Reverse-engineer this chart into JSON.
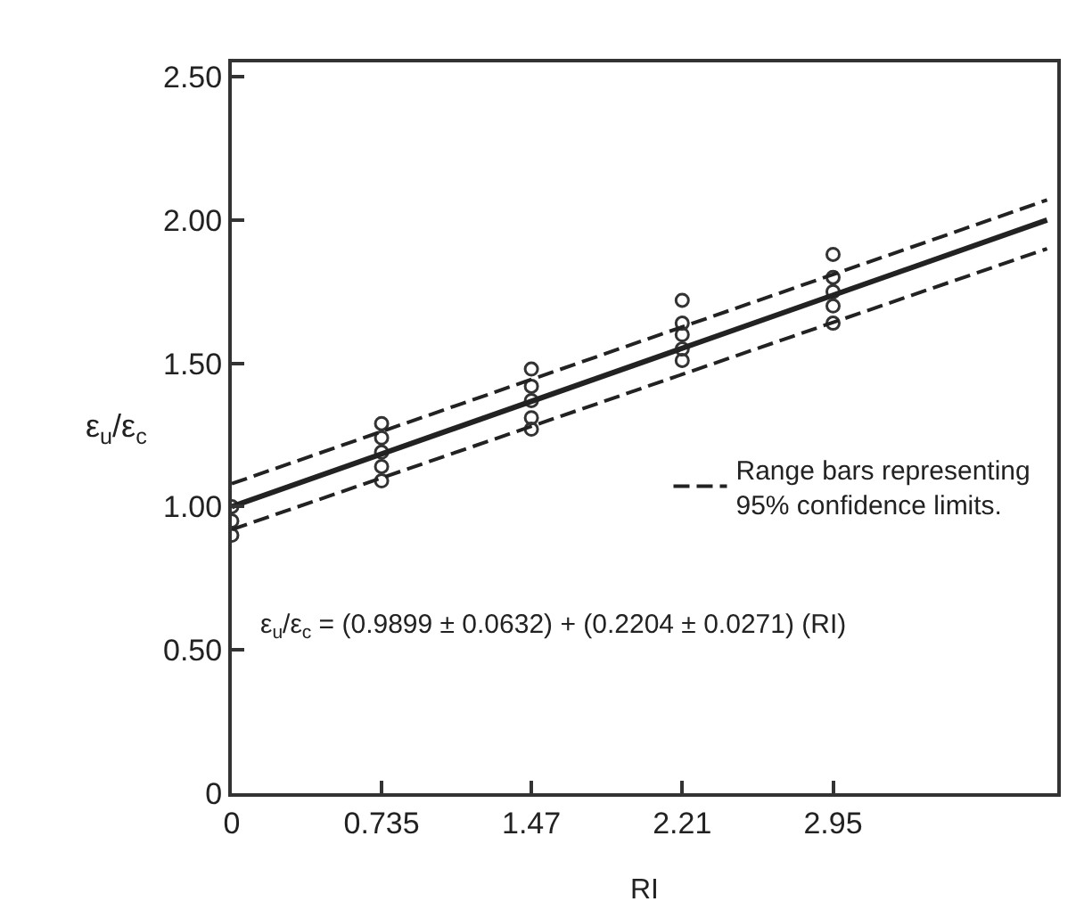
{
  "chart_data": {
    "type": "scatter",
    "xlabel": "RI",
    "ylabel": "ε$_{u}$/ε$_{c}$",
    "xlim": [
      0,
      4.05
    ],
    "xticks": [
      0,
      0.735,
      1.47,
      2.21,
      2.95
    ],
    "ylim": [
      0,
      2.55
    ],
    "yticks": [
      0,
      {
        "value": 0.5,
        "label": "0.50"
      },
      {
        "value": 1,
        "label": "1.00"
      },
      {
        "value": 1.5,
        "label": "1.50"
      },
      {
        "value": 2,
        "label": "2.00"
      },
      {
        "value": 2.5,
        "label": "2.50"
      }
    ],
    "grid": false,
    "legend": "right",
    "series": [
      {
        "marker": "circle",
        "color": "#333333",
        "x": [
          0,
          0,
          0,
          0.735,
          0.735,
          0.735,
          0.735,
          0.735,
          1.47,
          1.47,
          1.47,
          1.47,
          1.47,
          2.21,
          2.21,
          2.21,
          2.21,
          2.21,
          2.95,
          2.95,
          2.95,
          2.95,
          2.95
        ],
        "values": [
          1.0,
          0.95,
          0.9,
          1.29,
          1.24,
          1.19,
          1.14,
          1.09,
          1.48,
          1.42,
          1.37,
          1.31,
          1.27,
          1.72,
          1.64,
          1.6,
          1.55,
          1.51,
          1.88,
          1.8,
          1.75,
          1.7,
          1.64
        ]
      },
      {
        "type": "line",
        "line_style": "solid",
        "color": "#222222",
        "x": [
          0,
          4.0
        ],
        "values": [
          1.0,
          2.0
        ]
      },
      {
        "type": "line",
        "line_style": "dashed",
        "name": "Range bars representing\n95% confidence limits.",
        "color": "#222222",
        "x": [
          0,
          4.0
        ],
        "values": [
          1.08,
          2.07
        ]
      },
      {
        "type": "line",
        "line_style": "dashed",
        "color": "#222222",
        "x": [
          0,
          4.0
        ],
        "values": [
          0.92,
          1.9
        ]
      }
    ],
    "annotations": [
      "ε$_{u}$/ε$_{c}$ = (0.9899 ± 0.0632) + (0.2204 ± 0.0271) (RI)"
    ]
  }
}
